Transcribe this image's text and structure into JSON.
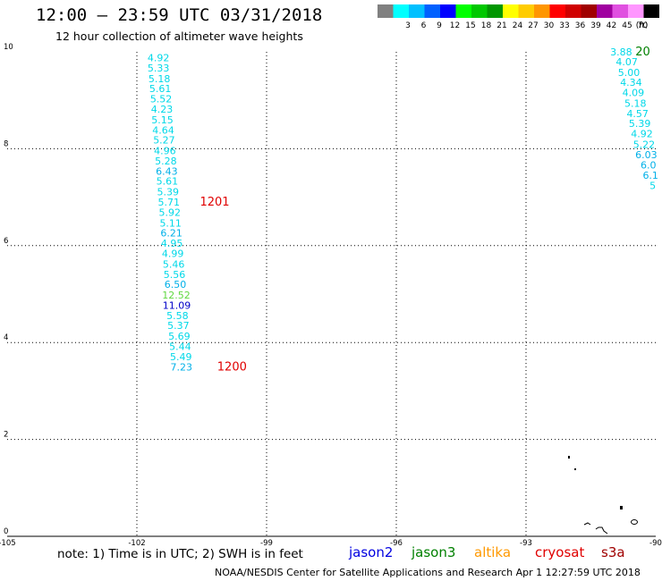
{
  "header": {
    "title": "12:00 – 23:59 UTC 03/31/2018",
    "subtitle": "12 hour collection of altimeter wave heights"
  },
  "legend": {
    "unit": "(ft)",
    "bins": [
      {
        "label": "",
        "color": "#808080"
      },
      {
        "label": "3",
        "color": "#00ffff"
      },
      {
        "label": "6",
        "color": "#00c0ff"
      },
      {
        "label": "9",
        "color": "#0060ff"
      },
      {
        "label": "12",
        "color": "#0000ff"
      },
      {
        "label": "15",
        "color": "#00ff00"
      },
      {
        "label": "18",
        "color": "#00c800"
      },
      {
        "label": "21",
        "color": "#009600"
      },
      {
        "label": "24",
        "color": "#ffff00"
      },
      {
        "label": "27",
        "color": "#ffcc00"
      },
      {
        "label": "30",
        "color": "#ff9600"
      },
      {
        "label": "33",
        "color": "#ff0000"
      },
      {
        "label": "36",
        "color": "#d00000"
      },
      {
        "label": "39",
        "color": "#a00000"
      },
      {
        "label": "42",
        "color": "#a000a0"
      },
      {
        "label": "45",
        "color": "#e050e0"
      },
      {
        "label": "70",
        "color": "#ff96ff"
      },
      {
        "label": "",
        "color": "#000000"
      }
    ]
  },
  "map": {
    "x_ticks": [
      "-105",
      "-102",
      "-99",
      "-96",
      "-93",
      "-90"
    ],
    "y_ticks": [
      "0",
      "2",
      "4",
      "6",
      "8",
      "10"
    ],
    "lon_range": [
      -105,
      -90
    ],
    "lat_range": [
      0,
      10
    ],
    "grid": "dotted"
  },
  "tracks": [
    {
      "id": "track-main",
      "points": [
        {
          "lon": -101.5,
          "lat": 9.88,
          "value": "4.92",
          "color": "#00d8e8"
        },
        {
          "lon": -101.5,
          "lat": 9.67,
          "value": "5.33",
          "color": "#00d8e8"
        },
        {
          "lon": -101.48,
          "lat": 9.45,
          "value": "5.18",
          "color": "#00d8e8"
        },
        {
          "lon": -101.46,
          "lat": 9.24,
          "value": "5.61",
          "color": "#00d8e8"
        },
        {
          "lon": -101.44,
          "lat": 9.03,
          "value": "5.52",
          "color": "#00d8e8"
        },
        {
          "lon": -101.42,
          "lat": 8.82,
          "value": "4.23",
          "color": "#00d8e8"
        },
        {
          "lon": -101.41,
          "lat": 8.6,
          "value": "5.15",
          "color": "#00d8e8"
        },
        {
          "lon": -101.39,
          "lat": 8.39,
          "value": "4.64",
          "color": "#00d8e8"
        },
        {
          "lon": -101.37,
          "lat": 8.18,
          "value": "5.27",
          "color": "#00d8e8"
        },
        {
          "lon": -101.35,
          "lat": 7.96,
          "value": "4.96",
          "color": "#00d8e8"
        },
        {
          "lon": -101.33,
          "lat": 7.75,
          "value": "5.28",
          "color": "#00d8e8"
        },
        {
          "lon": -101.31,
          "lat": 7.54,
          "value": "6.43",
          "color": "#00b0e8"
        },
        {
          "lon": -101.3,
          "lat": 7.33,
          "value": "5.61",
          "color": "#00d8e8"
        },
        {
          "lon": -101.28,
          "lat": 7.11,
          "value": "5.39",
          "color": "#00d8e8"
        },
        {
          "lon": -101.26,
          "lat": 6.9,
          "value": "5.71",
          "color": "#00d8e8"
        },
        {
          "lon": -101.24,
          "lat": 6.69,
          "value": "5.92",
          "color": "#00d8e8"
        },
        {
          "lon": -101.22,
          "lat": 6.47,
          "value": "5.11",
          "color": "#00d8e8"
        },
        {
          "lon": -101.2,
          "lat": 6.26,
          "value": "6.21",
          "color": "#00b0e8"
        },
        {
          "lon": -101.19,
          "lat": 6.05,
          "value": "4.95",
          "color": "#00d8e8"
        },
        {
          "lon": -101.17,
          "lat": 5.84,
          "value": "4.99",
          "color": "#00d8e8"
        },
        {
          "lon": -101.15,
          "lat": 5.62,
          "value": "5.46",
          "color": "#00d8e8"
        },
        {
          "lon": -101.13,
          "lat": 5.41,
          "value": "5.56",
          "color": "#00d8e8"
        },
        {
          "lon": -101.11,
          "lat": 5.2,
          "value": "6.50",
          "color": "#00b0e8"
        },
        {
          "lon": -101.09,
          "lat": 4.98,
          "value": "12.52",
          "color": "#60d840"
        },
        {
          "lon": -101.08,
          "lat": 4.77,
          "value": "11.09",
          "color": "#0000c8"
        },
        {
          "lon": -101.06,
          "lat": 4.56,
          "value": "5.58",
          "color": "#00d8e8"
        },
        {
          "lon": -101.04,
          "lat": 4.35,
          "value": "5.37",
          "color": "#00d8e8"
        },
        {
          "lon": -101.02,
          "lat": 4.13,
          "value": "5.69",
          "color": "#00d8e8"
        },
        {
          "lon": -101.0,
          "lat": 3.92,
          "value": "5.44",
          "color": "#00d8e8"
        },
        {
          "lon": -100.98,
          "lat": 3.71,
          "value": "5.49",
          "color": "#00d8e8"
        },
        {
          "lon": -100.97,
          "lat": 3.5,
          "value": "7.23",
          "color": "#00b0e8"
        }
      ]
    },
    {
      "id": "track-east",
      "points": [
        {
          "lon": -90.8,
          "lat": 10.0,
          "value": "3.88",
          "color": "#00d8e8"
        },
        {
          "lon": -90.67,
          "lat": 9.8,
          "value": "4.07",
          "color": "#00d8e8"
        },
        {
          "lon": -90.62,
          "lat": 9.58,
          "value": "5.00",
          "color": "#00d8e8"
        },
        {
          "lon": -90.57,
          "lat": 9.37,
          "value": "4.34",
          "color": "#00d8e8"
        },
        {
          "lon": -90.52,
          "lat": 9.16,
          "value": "4.09",
          "color": "#00d8e8"
        },
        {
          "lon": -90.47,
          "lat": 8.94,
          "value": "5.18",
          "color": "#00d8e8"
        },
        {
          "lon": -90.42,
          "lat": 8.73,
          "value": "4.57",
          "color": "#00d8e8"
        },
        {
          "lon": -90.37,
          "lat": 8.52,
          "value": "5.39",
          "color": "#00d8e8"
        },
        {
          "lon": -90.32,
          "lat": 8.31,
          "value": "4.92",
          "color": "#00d8e8"
        },
        {
          "lon": -90.27,
          "lat": 8.09,
          "value": "5.22",
          "color": "#00d8e8"
        },
        {
          "lon": -90.22,
          "lat": 7.88,
          "value": "6.03",
          "color": "#00b0e8"
        },
        {
          "lon": -90.17,
          "lat": 7.67,
          "value": "6.0",
          "color": "#00b0e8"
        },
        {
          "lon": -90.12,
          "lat": 7.45,
          "value": "6.1",
          "color": "#00b0e8"
        },
        {
          "lon": -90.07,
          "lat": 7.24,
          "value": "5",
          "color": "#00d8e8"
        }
      ]
    }
  ],
  "time_labels": [
    {
      "text": "1201",
      "lon": -100.2,
      "lat": 6.9,
      "color": "#e00000"
    },
    {
      "text": "1200",
      "lon": -99.8,
      "lat": 3.5,
      "color": "#e00000"
    },
    {
      "text": "20",
      "lon": -90.3,
      "lat": 10.0,
      "color": "#008000"
    }
  ],
  "satellites": [
    {
      "name": "jason2",
      "color": "#0000e0"
    },
    {
      "name": "jason3",
      "color": "#008000"
    },
    {
      "name": "altika",
      "color": "#ff9900"
    },
    {
      "name": "cryosat",
      "color": "#e00000"
    },
    {
      "name": "s3a",
      "color": "#a00000"
    }
  ],
  "footer": {
    "note": "note:  1) Time is in UTC;  2) SWH is in feet",
    "credit": "NOAA/NESDIS Center for Satellite Applications and Research     Apr  1 12:27:59 UTC 2018"
  }
}
